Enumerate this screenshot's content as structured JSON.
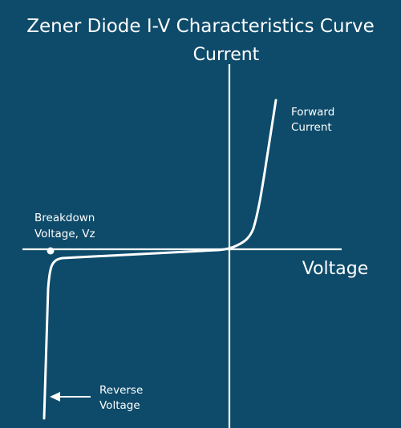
{
  "title": "Zener Diode I-V Characteristics Curve",
  "y_axis_label": "Current",
  "x_axis_label": "Voltage",
  "annotations": {
    "forward": [
      "Forward",
      "Current"
    ],
    "breakdown": [
      "Breakdown",
      "Voltage, Vz"
    ],
    "reverse": [
      "Reverse",
      "Voltage"
    ]
  },
  "colors": {
    "background": "#0e4b6a",
    "foreground": "#ffffff"
  }
}
